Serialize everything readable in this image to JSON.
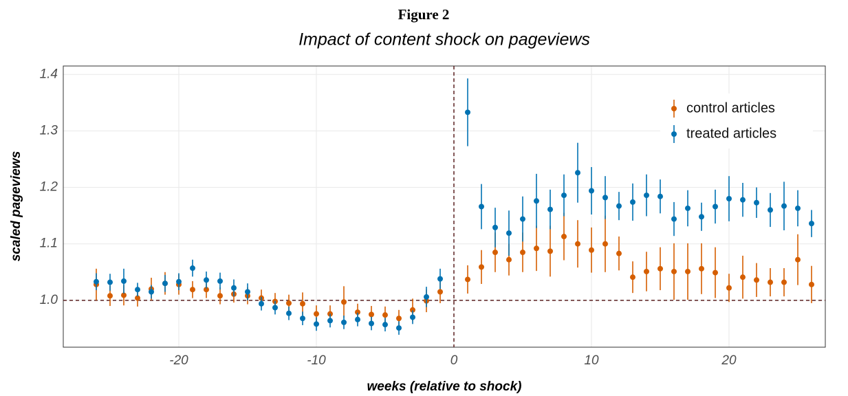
{
  "chart_data": {
    "type": "errorbar-scatter",
    "figure_label": "Figure 2",
    "title": "Impact of content shock on pageviews",
    "x_label": "weeks (relative to shock)",
    "y_label": "scaled pageviews",
    "xlim": [
      -28.4,
      27
    ],
    "ylim": [
      0.917,
      1.415
    ],
    "xticks": [
      -20,
      -10,
      0,
      10,
      20
    ],
    "yticks": [
      {
        "value": 1,
        "label": "1.0"
      },
      1.1,
      1.2,
      1.3,
      1.4
    ],
    "grid": true,
    "hline": 1,
    "vline": 0,
    "legend_position": "top-right",
    "x": [
      -26,
      -25,
      -24,
      -23,
      -22,
      -21,
      -20,
      -19,
      -18,
      -17,
      -16,
      -15,
      -14,
      -13,
      -12,
      -11,
      -10,
      -9,
      -8,
      -7,
      -6,
      -5,
      -4,
      -3,
      -2,
      -1,
      1,
      2,
      3,
      4,
      5,
      6,
      7,
      8,
      9,
      10,
      11,
      12,
      13,
      14,
      15,
      16,
      17,
      18,
      19,
      20,
      21,
      22,
      23,
      24,
      25,
      26
    ],
    "series": [
      {
        "name": "control articles",
        "color": "#d55e00",
        "values": [
          1.028,
          1.008,
          1.009,
          1.004,
          1.02,
          1.03,
          1.028,
          1.019,
          1.019,
          1.008,
          1.011,
          1.008,
          1.004,
          0.998,
          0.995,
          0.994,
          0.976,
          0.976,
          0.997,
          0.979,
          0.975,
          0.974,
          0.968,
          0.983,
          0.999,
          1.015,
          1.037,
          1.059,
          1.085,
          1.072,
          1.085,
          1.092,
          1.087,
          1.113,
          1.1,
          1.089,
          1.1,
          1.083,
          1.041,
          1.051,
          1.056,
          1.051,
          1.051,
          1.056,
          1.049,
          1.022,
          1.041,
          1.036,
          1.032,
          1.032,
          1.072,
          1.028
        ],
        "errors": [
          0.028,
          0.018,
          0.018,
          0.015,
          0.02,
          0.02,
          0.018,
          0.015,
          0.015,
          0.015,
          0.015,
          0.015,
          0.015,
          0.015,
          0.015,
          0.02,
          0.015,
          0.015,
          0.028,
          0.015,
          0.015,
          0.015,
          0.015,
          0.02,
          0.02,
          0.02,
          0.025,
          0.03,
          0.035,
          0.028,
          0.035,
          0.04,
          0.045,
          0.042,
          0.042,
          0.04,
          0.05,
          0.03,
          0.028,
          0.035,
          0.038,
          0.05,
          0.05,
          0.045,
          0.045,
          0.025,
          0.038,
          0.03,
          0.025,
          0.025,
          0.045,
          0.033
        ]
      },
      {
        "name": "treated articles",
        "color": "#0072b2",
        "values": [
          1.033,
          1.032,
          1.034,
          1.019,
          1.015,
          1.03,
          1.033,
          1.057,
          1.036,
          1.034,
          1.022,
          1.015,
          0.994,
          0.987,
          0.977,
          0.968,
          0.958,
          0.964,
          0.961,
          0.966,
          0.959,
          0.957,
          0.951,
          0.97,
          1.006,
          1.038,
          1.333,
          1.166,
          1.129,
          1.119,
          1.144,
          1.176,
          1.161,
          1.186,
          1.226,
          1.194,
          1.182,
          1.167,
          1.174,
          1.186,
          1.184,
          1.144,
          1.163,
          1.148,
          1.166,
          1.18,
          1.178,
          1.173,
          1.16,
          1.167,
          1.163,
          1.136
        ],
        "errors": [
          0.015,
          0.015,
          0.022,
          0.012,
          0.012,
          0.015,
          0.015,
          0.015,
          0.015,
          0.015,
          0.015,
          0.015,
          0.012,
          0.012,
          0.012,
          0.012,
          0.012,
          0.012,
          0.012,
          0.012,
          0.012,
          0.012,
          0.012,
          0.012,
          0.018,
          0.018,
          0.06,
          0.04,
          0.035,
          0.04,
          0.04,
          0.048,
          0.035,
          0.037,
          0.053,
          0.042,
          0.038,
          0.025,
          0.033,
          0.037,
          0.03,
          0.03,
          0.032,
          0.025,
          0.03,
          0.04,
          0.03,
          0.027,
          0.03,
          0.043,
          0.032,
          0.024
        ]
      }
    ]
  }
}
